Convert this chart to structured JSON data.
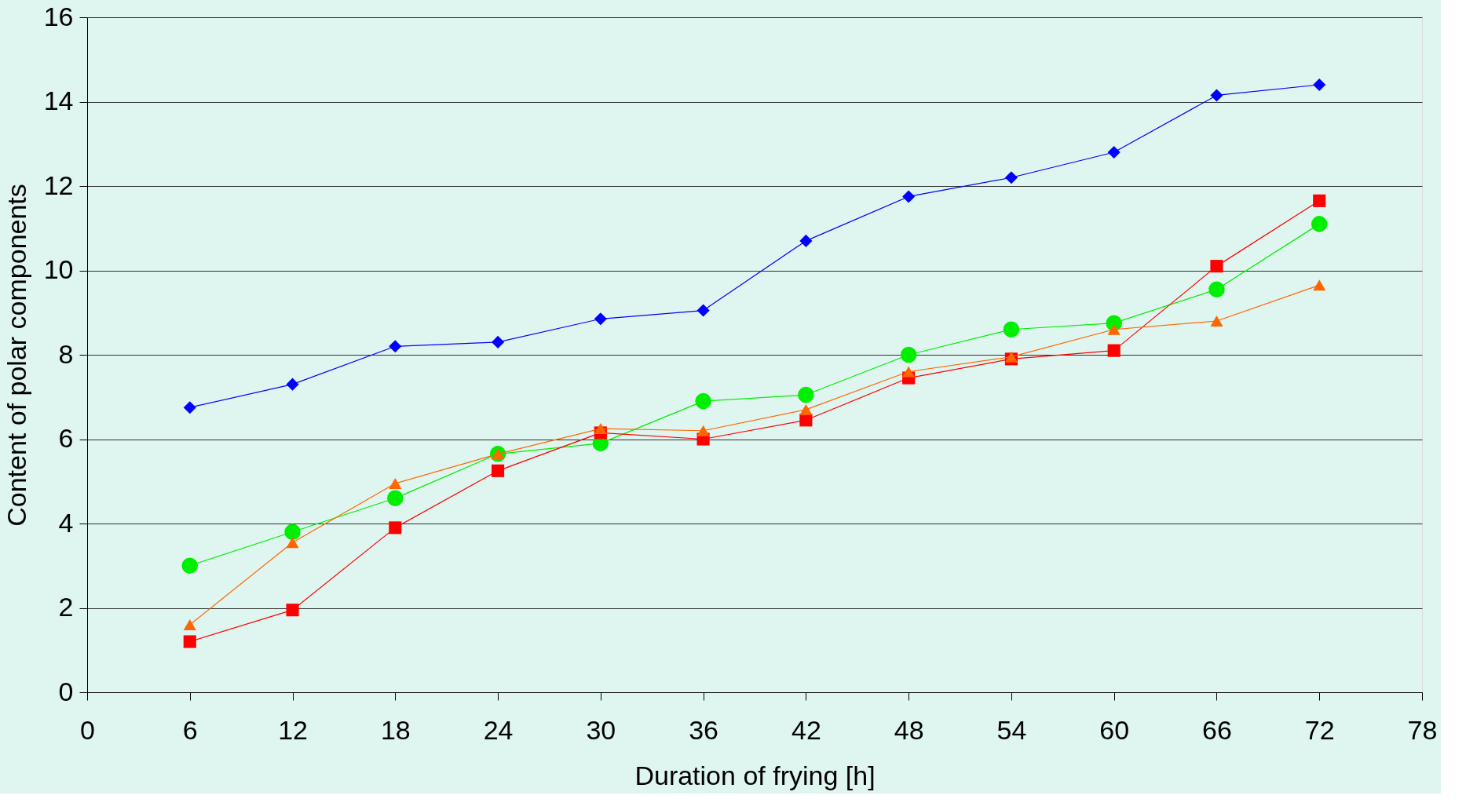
{
  "chart_data": {
    "type": "line",
    "xlabel": "Duration of frying [h]",
    "ylabel": "Content of polar components",
    "x": [
      6,
      12,
      18,
      24,
      30,
      36,
      42,
      48,
      54,
      60,
      66,
      72
    ],
    "xlim": [
      0,
      78
    ],
    "xticks": [
      0,
      6,
      12,
      18,
      24,
      30,
      36,
      42,
      48,
      54,
      60,
      66,
      72,
      78
    ],
    "ylim": [
      0,
      16
    ],
    "yticks": [
      0,
      2,
      4,
      6,
      8,
      10,
      12,
      14,
      16
    ],
    "grid": "y",
    "line_style": "solid",
    "series": [
      {
        "color": "#0000ff",
        "marker": "diamond",
        "values": [
          6.75,
          7.3,
          8.2,
          8.3,
          8.85,
          9.05,
          10.7,
          11.75,
          12.2,
          12.8,
          14.15,
          14.4
        ]
      },
      {
        "color": "#00ee00",
        "marker": "circle",
        "values": [
          3.0,
          3.8,
          4.6,
          5.65,
          5.9,
          6.9,
          7.05,
          8.0,
          8.6,
          8.75,
          9.55,
          11.1
        ]
      },
      {
        "color": "#ff0000",
        "marker": "square",
        "values": [
          1.2,
          1.95,
          3.9,
          5.25,
          6.15,
          6.0,
          6.45,
          7.45,
          7.9,
          8.1,
          10.1,
          11.65
        ]
      },
      {
        "color": "#ff6600",
        "marker": "triangle",
        "values": [
          1.6,
          3.55,
          4.95,
          5.65,
          6.25,
          6.2,
          6.7,
          7.6,
          7.95,
          8.6,
          8.8,
          9.65
        ]
      }
    ]
  }
}
